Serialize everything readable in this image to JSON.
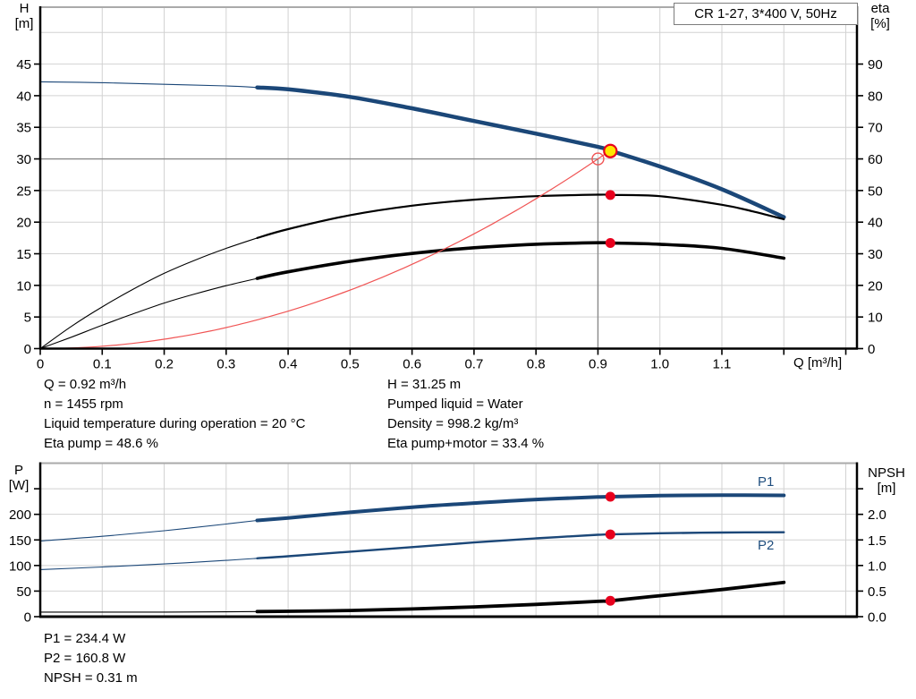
{
  "title_box": {
    "label": "CR 1-27, 3*400 V, 50Hz"
  },
  "axis_labels": {
    "h_top": "H",
    "h_unit": "[m]",
    "eta_top": "eta",
    "eta_unit": "[%]",
    "q_axis": "Q [m³/h]",
    "p_top": "P",
    "p_unit": "[W]",
    "npsh_top": "NPSH",
    "npsh_unit": "[m]"
  },
  "curve_labels": {
    "p1": "P1",
    "p2": "P2"
  },
  "info_top": {
    "col1": [
      "Q = 0.92 m³/h",
      "n = 1455 rpm",
      "Liquid temperature during operation = 20 °C",
      "Eta pump = 48.6 %"
    ],
    "col2": [
      "H = 31.25 m",
      "Pumped liquid = Water",
      "Density = 998.2 kg/m³",
      "Eta pump+motor = 33.4 %"
    ]
  },
  "info_bottom": [
    "P1 = 234.4 W",
    "P2 = 160.8 W",
    "NPSH = 0.31 m"
  ],
  "colors": {
    "curve_blue": "#1b4778",
    "curve_black": "#000000",
    "red": "#e8001d",
    "duty_red": "#f05454",
    "yellow": "#ffe600",
    "grid": "#d2d2d2",
    "crosshair": "#8a8a8a",
    "axis": "#000000",
    "top_border": "#aaaaaa",
    "label_blue": "#1f4e7e"
  },
  "chart_data": [
    {
      "type": "line",
      "name": "qh-eta-chart",
      "title": "CR 1-27, 3*400 V, 50Hz",
      "x": {
        "label": "Q [m³/h]",
        "min": 0,
        "max": 1.318,
        "grid_step": 0.1,
        "ticks": [
          [
            0,
            "0"
          ],
          [
            0.1,
            "0.1"
          ],
          [
            0.2,
            "0.2"
          ],
          [
            0.3,
            "0.3"
          ],
          [
            0.4,
            "0.4"
          ],
          [
            0.5,
            "0.5"
          ],
          [
            0.6,
            "0.6"
          ],
          [
            0.7,
            "0.7"
          ],
          [
            0.8,
            "0.8"
          ],
          [
            0.9,
            "0.9"
          ],
          [
            1.0,
            "1.0"
          ],
          [
            1.1,
            "1.1"
          ],
          [
            1.2,
            ""
          ],
          [
            1.3,
            ""
          ]
        ]
      },
      "left": {
        "label": "H [m]",
        "min": 0,
        "max": 54,
        "ticks": [
          [
            0,
            "0"
          ],
          [
            5,
            "5"
          ],
          [
            10,
            "10"
          ],
          [
            15,
            "15"
          ],
          [
            20,
            "20"
          ],
          [
            25,
            "25"
          ],
          [
            30,
            "30"
          ],
          [
            35,
            "35"
          ],
          [
            40,
            "40"
          ],
          [
            45,
            "45"
          ]
        ],
        "grid": [
          5,
          10,
          15,
          20,
          25,
          30,
          35,
          40,
          45,
          50
        ]
      },
      "right": {
        "label": "eta [%]",
        "min": 0,
        "max": 108,
        "ticks": [
          [
            0,
            "0"
          ],
          [
            10,
            "10"
          ],
          [
            20,
            "20"
          ],
          [
            30,
            "30"
          ],
          [
            40,
            "40"
          ],
          [
            50,
            "50"
          ],
          [
            60,
            "60"
          ],
          [
            70,
            "70"
          ],
          [
            80,
            "80"
          ],
          [
            90,
            "90"
          ]
        ]
      },
      "duty_point": {
        "q": 0.9,
        "h": 30
      },
      "operating_point": {
        "q": 0.92,
        "h": 31.25
      },
      "series": [
        {
          "name": "qh-curve",
          "label": "H",
          "axis": "left",
          "color": "curve_blue",
          "width": 4.5,
          "thin_until": 0.35,
          "points": [
            [
              0,
              42.2
            ],
            [
              0.1,
              42.05
            ],
            [
              0.2,
              41.8
            ],
            [
              0.3,
              41.55
            ],
            [
              0.35,
              41.3
            ],
            [
              0.4,
              41.0
            ],
            [
              0.5,
              39.8
            ],
            [
              0.6,
              38.0
            ],
            [
              0.7,
              36.0
            ],
            [
              0.8,
              34.0
            ],
            [
              0.9,
              31.9
            ],
            [
              0.92,
              31.3
            ],
            [
              1.0,
              28.8
            ],
            [
              1.1,
              25.2
            ],
            [
              1.2,
              20.8
            ]
          ]
        },
        {
          "name": "eta-pump-curve",
          "label": "Eta pump",
          "axis": "right",
          "color": "curve_black",
          "width": 2.2,
          "thin_until": 0.35,
          "points": [
            [
              0,
              0
            ],
            [
              0.05,
              7
            ],
            [
              0.1,
              13.2
            ],
            [
              0.15,
              18.8
            ],
            [
              0.2,
              23.8
            ],
            [
              0.25,
              28
            ],
            [
              0.3,
              31.7
            ],
            [
              0.35,
              35
            ],
            [
              0.4,
              37.8
            ],
            [
              0.5,
              42.2
            ],
            [
              0.6,
              45.2
            ],
            [
              0.7,
              47.1
            ],
            [
              0.8,
              48.2
            ],
            [
              0.9,
              48.7
            ],
            [
              0.92,
              48.6
            ],
            [
              1.0,
              48.2
            ],
            [
              1.1,
              45.5
            ],
            [
              1.15,
              43.4
            ],
            [
              1.2,
              40.9
            ]
          ]
        },
        {
          "name": "eta-pump-motor-curve",
          "label": "Eta pump+motor",
          "axis": "right",
          "color": "curve_black",
          "width": 3.6,
          "thin_until": 0.35,
          "points": [
            [
              0,
              0
            ],
            [
              0.05,
              3.6
            ],
            [
              0.1,
              7.4
            ],
            [
              0.15,
              11
            ],
            [
              0.2,
              14.4
            ],
            [
              0.25,
              17.3
            ],
            [
              0.3,
              19.9
            ],
            [
              0.35,
              22.2
            ],
            [
              0.4,
              24.3
            ],
            [
              0.5,
              27.6
            ],
            [
              0.6,
              30.1
            ],
            [
              0.7,
              31.9
            ],
            [
              0.8,
              33.0
            ],
            [
              0.9,
              33.5
            ],
            [
              0.92,
              33.4
            ],
            [
              1.0,
              33.0
            ],
            [
              1.1,
              31.7
            ],
            [
              1.2,
              28.6
            ]
          ]
        }
      ],
      "markers": [
        {
          "type": "dot",
          "axis": "right",
          "q": 0.92,
          "value": 48.6,
          "name": "eta-pump-point"
        },
        {
          "type": "dot",
          "axis": "right",
          "q": 0.92,
          "value": 33.4,
          "name": "eta-pump-motor-point"
        },
        {
          "type": "duty",
          "axis": "left",
          "q": 0.9,
          "value": 30,
          "name": "duty-point-marker"
        },
        {
          "type": "operating",
          "axis": "left",
          "q": 0.92,
          "value": 31.25,
          "name": "operating-point-marker"
        }
      ]
    },
    {
      "type": "line",
      "name": "power-npsh-chart",
      "x": {
        "label": "",
        "min": 0,
        "max": 1.318,
        "grid_step": 0.1,
        "ticks": []
      },
      "left": {
        "label": "P [W]",
        "min": 0,
        "max": 300,
        "ticks": [
          [
            0,
            "0"
          ],
          [
            50,
            "50"
          ],
          [
            100,
            "100"
          ],
          [
            150,
            "150"
          ],
          [
            200,
            "200"
          ],
          [
            250,
            ""
          ]
        ],
        "grid": [
          50,
          100,
          150,
          200,
          250
        ]
      },
      "right": {
        "label": "NPSH [m]",
        "min": 0,
        "max": 3,
        "ticks": [
          [
            0,
            "0.0"
          ],
          [
            0.5,
            "0.5"
          ],
          [
            1,
            "1.0"
          ],
          [
            1.5,
            "1.5"
          ],
          [
            2,
            "2.0"
          ],
          [
            2.5,
            ""
          ]
        ]
      },
      "series": [
        {
          "name": "p1-curve",
          "label": "P1",
          "axis": "left",
          "color": "curve_blue",
          "width": 4,
          "thin_until": 0.35,
          "points": [
            [
              0,
              148
            ],
            [
              0.1,
              157
            ],
            [
              0.2,
              168
            ],
            [
              0.3,
              181
            ],
            [
              0.35,
              188
            ],
            [
              0.4,
              193
            ],
            [
              0.5,
              204
            ],
            [
              0.6,
              214
            ],
            [
              0.7,
              222
            ],
            [
              0.8,
              229
            ],
            [
              0.9,
              233.8
            ],
            [
              0.92,
              234.4
            ],
            [
              1.0,
              236.5
            ],
            [
              1.1,
              237.5
            ],
            [
              1.2,
              237
            ]
          ]
        },
        {
          "name": "p2-curve",
          "label": "P2",
          "axis": "left",
          "color": "curve_blue",
          "width": 2.4,
          "thin_until": 0.35,
          "points": [
            [
              0,
              92
            ],
            [
              0.1,
              97
            ],
            [
              0.2,
              103
            ],
            [
              0.3,
              110
            ],
            [
              0.35,
              114
            ],
            [
              0.4,
              118
            ],
            [
              0.5,
              127
            ],
            [
              0.6,
              136
            ],
            [
              0.7,
              145
            ],
            [
              0.8,
              153
            ],
            [
              0.9,
              160
            ],
            [
              0.92,
              160.8
            ],
            [
              1.0,
              163
            ],
            [
              1.1,
              164.5
            ],
            [
              1.2,
              165
            ]
          ]
        },
        {
          "name": "npsh-curve",
          "label": "NPSH",
          "axis": "right",
          "color": "curve_black",
          "width": 3.8,
          "thin_until": 0.35,
          "points": [
            [
              0,
              0.09
            ],
            [
              0.1,
              0.09
            ],
            [
              0.2,
              0.09
            ],
            [
              0.3,
              0.095
            ],
            [
              0.35,
              0.1
            ],
            [
              0.4,
              0.105
            ],
            [
              0.5,
              0.12
            ],
            [
              0.6,
              0.15
            ],
            [
              0.7,
              0.19
            ],
            [
              0.8,
              0.24
            ],
            [
              0.9,
              0.3
            ],
            [
              0.92,
              0.31
            ],
            [
              1.0,
              0.41
            ],
            [
              1.1,
              0.53
            ],
            [
              1.2,
              0.67
            ]
          ]
        }
      ],
      "markers": [
        {
          "type": "dot",
          "axis": "left",
          "q": 0.92,
          "value": 234.4,
          "name": "p1-point"
        },
        {
          "type": "dot",
          "axis": "left",
          "q": 0.92,
          "value": 160.8,
          "name": "p2-point"
        },
        {
          "type": "dot",
          "axis": "right",
          "q": 0.92,
          "value": 0.31,
          "name": "npsh-point"
        }
      ]
    }
  ]
}
